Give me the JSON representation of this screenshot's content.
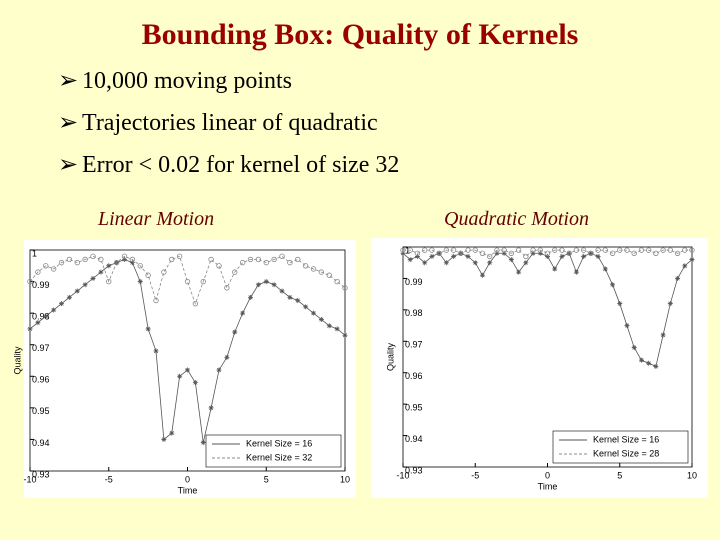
{
  "title": "Bounding Box: Quality of Kernels",
  "bullets": [
    "10,000 moving points",
    "Trajectories linear of quadratic",
    "Error < 0.02 for kernel of size 32"
  ],
  "chart_data": [
    {
      "type": "line",
      "title": "Linear Motion",
      "xlabel": "Time",
      "ylabel": "Quality",
      "x": [
        -10,
        -9.5,
        -9,
        -8.5,
        -8,
        -7.5,
        -7,
        -6.5,
        -6,
        -5.5,
        -5,
        -4.5,
        -4,
        -3.5,
        -3,
        -2.5,
        -2,
        -1.5,
        -1,
        -0.5,
        0,
        0.5,
        1,
        1.5,
        2,
        2.5,
        3,
        3.5,
        4,
        4.5,
        5,
        5.5,
        6,
        6.5,
        7,
        7.5,
        8,
        8.5,
        9,
        9.5,
        10
      ],
      "series": [
        {
          "name": "Kernel Size = 16",
          "color": "#555555",
          "marker": "asterisk",
          "values": [
            0.975,
            0.977,
            0.979,
            0.981,
            0.983,
            0.985,
            0.987,
            0.989,
            0.991,
            0.993,
            0.995,
            0.996,
            0.997,
            0.996,
            0.99,
            0.975,
            0.968,
            0.94,
            0.942,
            0.96,
            0.962,
            0.958,
            0.939,
            0.95,
            0.962,
            0.966,
            0.974,
            0.98,
            0.985,
            0.989,
            0.99,
            0.989,
            0.987,
            0.985,
            0.984,
            0.982,
            0.98,
            0.978,
            0.976,
            0.975,
            0.973
          ]
        },
        {
          "name": "Kernel Size = 32",
          "color": "#888888",
          "marker": "circle",
          "dashed": true,
          "values": [
            0.99,
            0.993,
            0.995,
            0.994,
            0.996,
            0.997,
            0.996,
            0.997,
            0.998,
            0.997,
            0.99,
            0.996,
            0.998,
            0.997,
            0.995,
            0.992,
            0.984,
            0.993,
            0.997,
            0.998,
            0.99,
            0.983,
            0.99,
            0.997,
            0.995,
            0.988,
            0.993,
            0.996,
            0.997,
            0.997,
            0.996,
            0.997,
            0.998,
            0.996,
            0.997,
            0.995,
            0.994,
            0.993,
            0.992,
            0.99,
            0.988
          ]
        }
      ],
      "xlim": [
        -10,
        10
      ],
      "xticks": [
        -10,
        -5,
        0,
        5,
        10
      ],
      "ylim": [
        0.93,
        1
      ],
      "yticks": [
        0.93,
        0.94,
        0.95,
        0.96,
        0.97,
        0.98,
        0.99,
        1
      ],
      "legend": "lower right",
      "grid": false
    },
    {
      "type": "line",
      "title": "Quadratic Motion",
      "xlabel": "Time",
      "ylabel": "Quality",
      "x": [
        -10,
        -9.5,
        -9,
        -8.5,
        -8,
        -7.5,
        -7,
        -6.5,
        -6,
        -5.5,
        -5,
        -4.5,
        -4,
        -3.5,
        -3,
        -2.5,
        -2,
        -1.5,
        -1,
        -0.5,
        0,
        0.5,
        1,
        1.5,
        2,
        2.5,
        3,
        3.5,
        4,
        4.5,
        5,
        5.5,
        6,
        6.5,
        7,
        7.5,
        8,
        8.5,
        9,
        9.5,
        10
      ],
      "series": [
        {
          "name": "Kernel Size = 16",
          "color": "#555555",
          "marker": "asterisk",
          "values": [
            0.998,
            0.996,
            0.997,
            0.995,
            0.997,
            0.998,
            0.995,
            0.997,
            0.998,
            0.997,
            0.995,
            0.991,
            0.995,
            0.998,
            0.998,
            0.996,
            0.992,
            0.995,
            0.998,
            0.998,
            0.997,
            0.993,
            0.997,
            0.998,
            0.992,
            0.997,
            0.998,
            0.997,
            0.993,
            0.988,
            0.982,
            0.975,
            0.968,
            0.964,
            0.963,
            0.962,
            0.972,
            0.982,
            0.99,
            0.994,
            0.996
          ]
        },
        {
          "name": "Kernel Size = 28",
          "color": "#888888",
          "marker": "circle",
          "dashed": true,
          "values": [
            0.999,
            0.999,
            0.998,
            0.999,
            0.999,
            0.998,
            0.999,
            0.999,
            0.998,
            0.999,
            0.999,
            0.998,
            0.997,
            0.999,
            0.999,
            0.998,
            0.999,
            0.997,
            0.999,
            0.999,
            0.998,
            0.999,
            0.999,
            0.998,
            0.999,
            0.999,
            0.998,
            0.999,
            0.999,
            0.998,
            0.999,
            0.999,
            0.998,
            0.999,
            0.999,
            0.998,
            0.999,
            0.999,
            0.998,
            0.999,
            0.999
          ]
        }
      ],
      "xlim": [
        -10,
        10
      ],
      "xticks": [
        -10,
        -5,
        0,
        5,
        10
      ],
      "ylim": [
        0.93,
        1
      ],
      "yticks": [
        0.93,
        0.94,
        0.95,
        0.96,
        0.97,
        0.98,
        0.99,
        1
      ],
      "legend": "lower right",
      "grid": false
    }
  ]
}
